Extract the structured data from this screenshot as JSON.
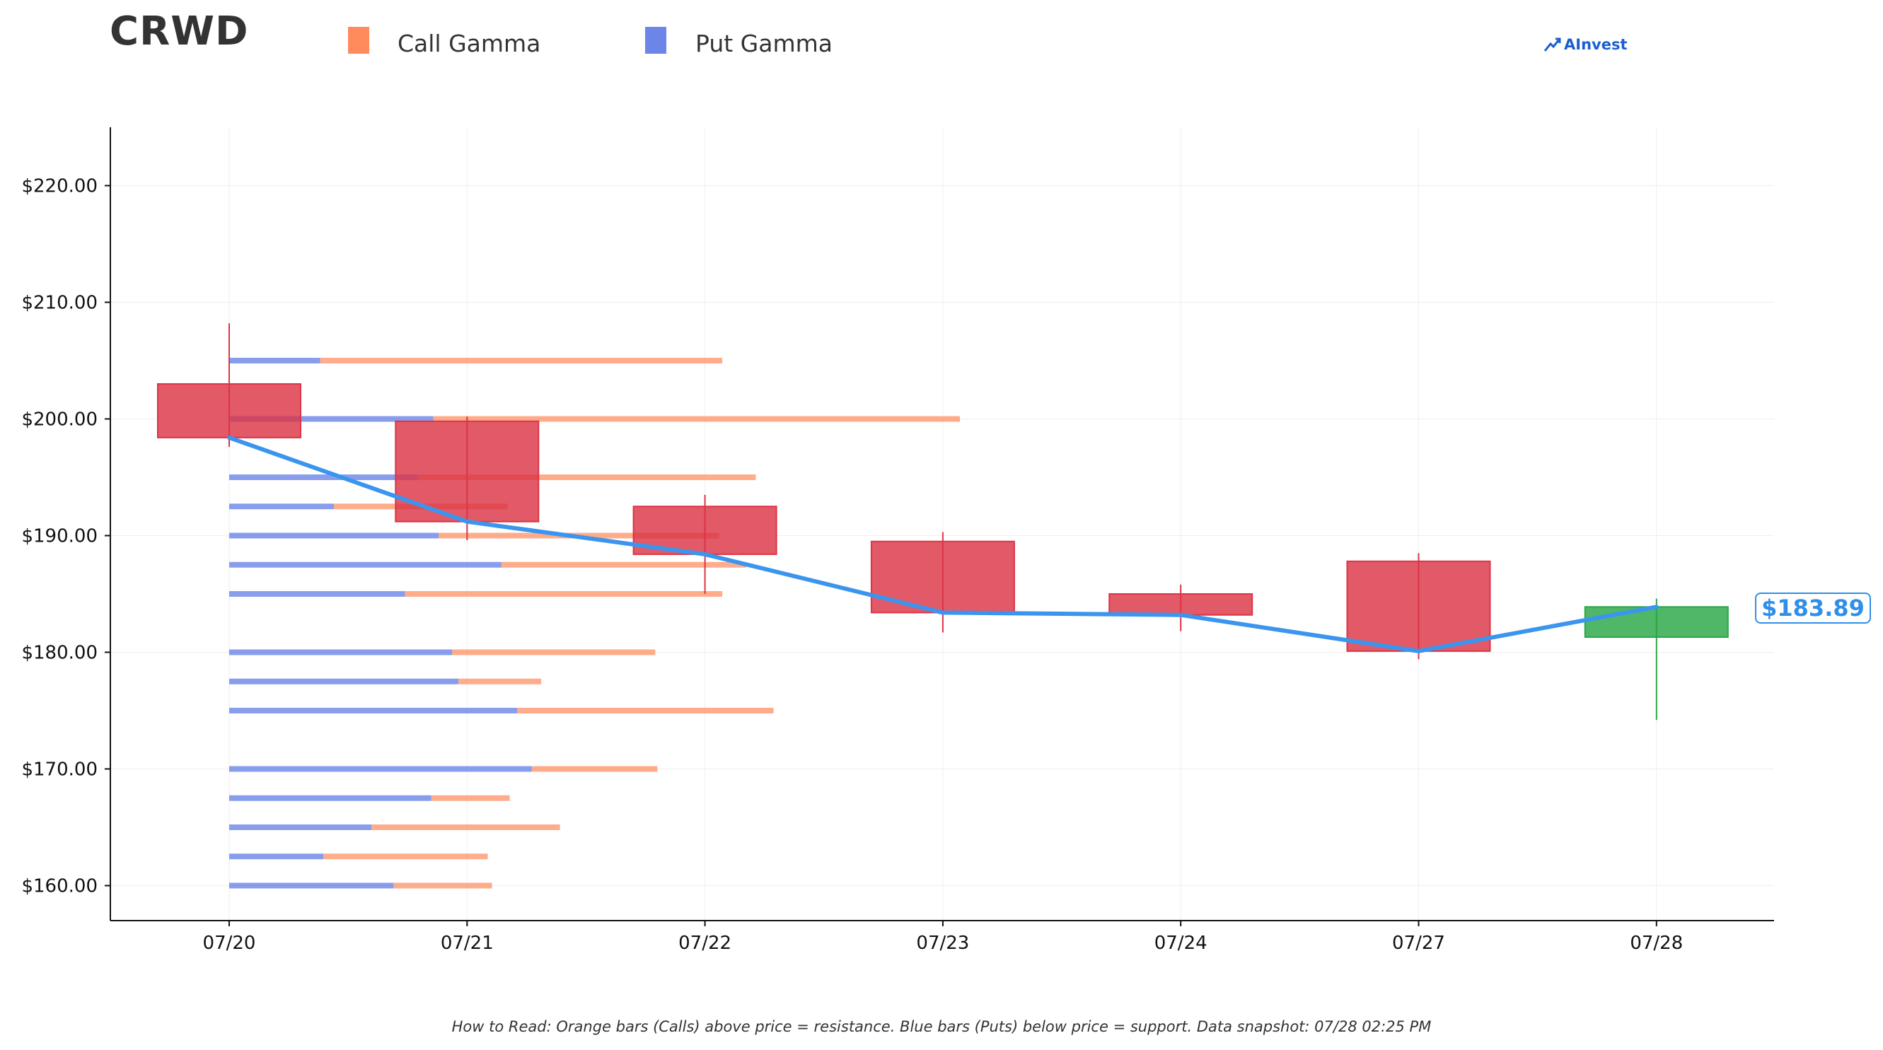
{
  "header": {
    "ticker": "CRWD",
    "brand": "AInvest"
  },
  "legend": {
    "call_label": "Call Gamma",
    "put_label": "Put Gamma",
    "call_color": "#ff8a5b",
    "put_color": "#6b86e8"
  },
  "footnote": "How to Read: Orange bars (Calls) above price = resistance. Blue bars (Puts) below price = support. Data snapshot: 07/28 02:25 PM",
  "last_price_label": "$183.89",
  "chart_data": {
    "type": "candlestick",
    "title": "CRWD",
    "ylim": [
      157,
      225
    ],
    "y_ticks": [
      160,
      170,
      180,
      190,
      200,
      210,
      220
    ],
    "y_tick_labels": [
      "$160.00",
      "$170.00",
      "$180.00",
      "$190.00",
      "$200.00",
      "$210.00",
      "$220.00"
    ],
    "grid": true,
    "legend_position": "top-left",
    "categories": [
      "07/20",
      "07/21",
      "07/22",
      "07/23",
      "07/24",
      "07/27",
      "07/28"
    ],
    "candles": [
      {
        "date": "07/20",
        "open": 203.0,
        "high": 208.2,
        "low": 197.6,
        "close": 198.4
      },
      {
        "date": "07/21",
        "open": 199.8,
        "high": 200.2,
        "low": 189.6,
        "close": 191.2
      },
      {
        "date": "07/22",
        "open": 192.5,
        "high": 193.5,
        "low": 185.0,
        "close": 188.4
      },
      {
        "date": "07/23",
        "open": 189.5,
        "high": 190.3,
        "low": 181.7,
        "close": 183.4
      },
      {
        "date": "07/24",
        "open": 185.0,
        "high": 185.8,
        "low": 181.8,
        "close": 183.2
      },
      {
        "date": "07/27",
        "open": 187.8,
        "high": 188.5,
        "low": 179.4,
        "close": 180.1
      },
      {
        "date": "07/28",
        "open": 181.3,
        "high": 184.6,
        "low": 174.2,
        "close": 183.89
      }
    ],
    "close_line": {
      "color": "#3b95ee",
      "values": [
        198.4,
        191.2,
        188.4,
        183.4,
        183.2,
        180.1,
        183.89
      ]
    },
    "gamma_scale_max": 1,
    "gamma_levels": [
      {
        "strike": 205.0,
        "put": 0.087,
        "call": 0.384
      },
      {
        "strike": 200.0,
        "put": 0.195,
        "call": 0.503
      },
      {
        "strike": 195.0,
        "put": 0.18,
        "call": 0.323
      },
      {
        "strike": 192.5,
        "put": 0.1,
        "call": 0.166
      },
      {
        "strike": 190.0,
        "put": 0.2,
        "call": 0.268
      },
      {
        "strike": 187.5,
        "put": 0.26,
        "call": 0.234
      },
      {
        "strike": 185.0,
        "put": 0.168,
        "call": 0.303
      },
      {
        "strike": 180.0,
        "put": 0.213,
        "call": 0.194
      },
      {
        "strike": 177.5,
        "put": 0.219,
        "call": 0.079
      },
      {
        "strike": 175.0,
        "put": 0.275,
        "call": 0.245
      },
      {
        "strike": 170.0,
        "put": 0.289,
        "call": 0.12
      },
      {
        "strike": 167.5,
        "put": 0.193,
        "call": 0.075
      },
      {
        "strike": 165.0,
        "put": 0.136,
        "call": 0.18
      },
      {
        "strike": 162.5,
        "put": 0.09,
        "call": 0.157
      },
      {
        "strike": 160.0,
        "put": 0.157,
        "call": 0.094
      }
    ],
    "colors": {
      "down": "#dc3545",
      "up": "#28a745"
    }
  }
}
